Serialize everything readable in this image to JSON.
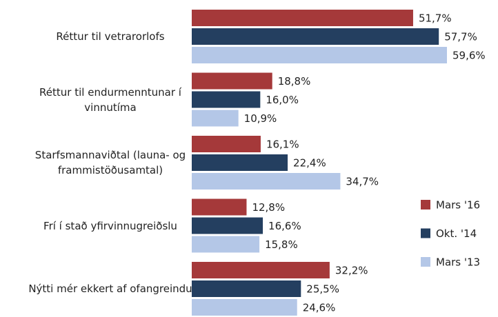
{
  "chart_data": {
    "type": "hbar",
    "categories": [
      "Réttur til vetrarorlofs",
      "Réttur til endurmenntunar í vinnutíma",
      "Starfsmannaviðtal (launa- og frammistöðusamtal)",
      "Frí í stað yfirvinnugreiðslu",
      "Nýtti mér ekkert af ofangreindu"
    ],
    "series": [
      {
        "name": "Mars '16",
        "color": "#a5393a",
        "values": [
          51.7,
          18.8,
          16.1,
          12.8,
          32.2
        ],
        "value_labels": [
          "51,7%",
          "18,8%",
          "16,1%",
          "12,8%",
          "32,2%"
        ]
      },
      {
        "name": "Okt. '14",
        "color": "#243f60",
        "values": [
          57.7,
          16.0,
          22.4,
          16.6,
          25.5
        ],
        "value_labels": [
          "57,7%",
          "16,0%",
          "22,4%",
          "16,6%",
          "25,5%"
        ]
      },
      {
        "name": "Mars '13",
        "color": "#b4c7e7",
        "values": [
          59.6,
          10.9,
          34.7,
          15.8,
          24.6
        ],
        "value_labels": [
          "59,6%",
          "10,9%",
          "34,7%",
          "15,8%",
          "24,6%"
        ]
      }
    ],
    "legend": "right"
  }
}
